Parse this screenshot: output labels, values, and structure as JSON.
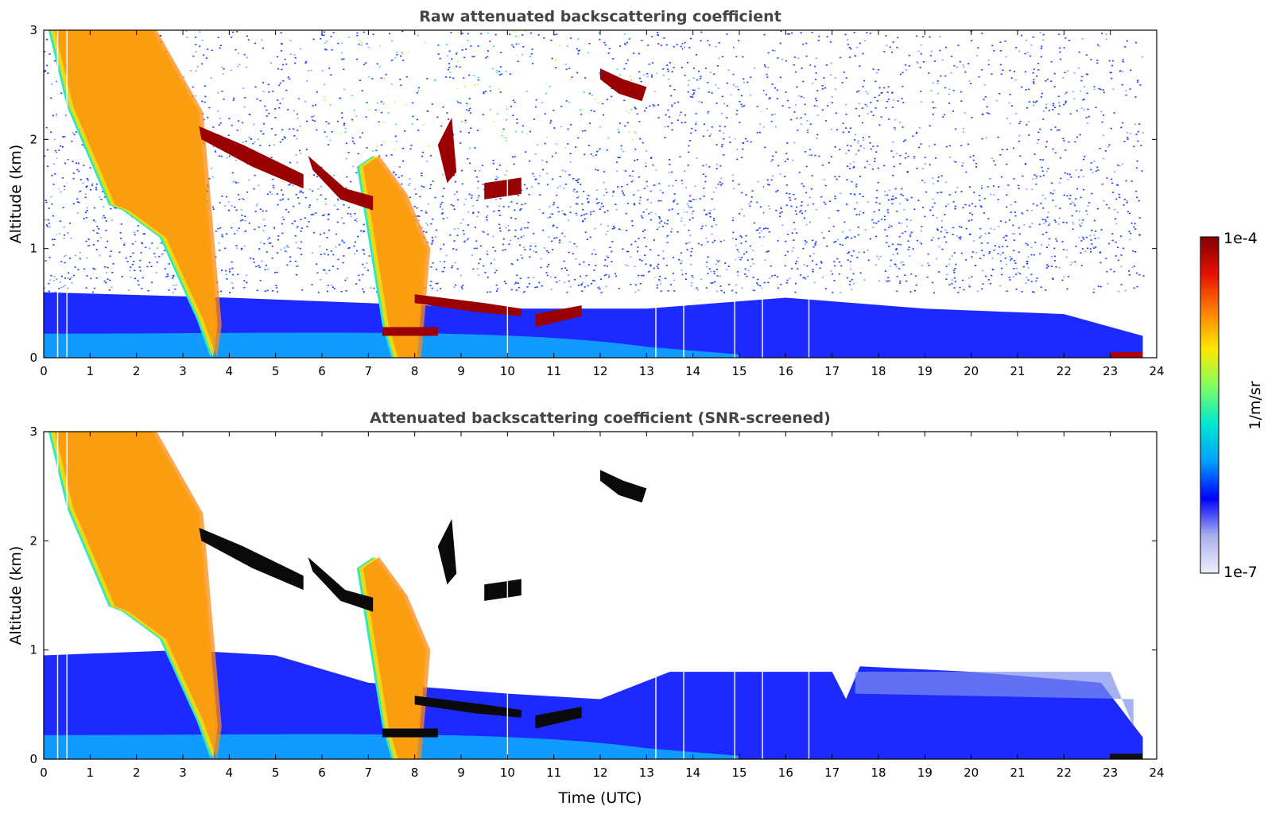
{
  "chart_data": [
    {
      "type": "heatmap",
      "title": "Raw attenuated backscattering coefficient",
      "xlabel": "",
      "ylabel": "Altitude (km)",
      "xlim": [
        0,
        24
      ],
      "ylim": [
        0,
        3
      ],
      "xticks": [
        0,
        1,
        2,
        3,
        4,
        5,
        6,
        7,
        8,
        9,
        10,
        11,
        12,
        13,
        14,
        15,
        16,
        17,
        18,
        19,
        20,
        21,
        22,
        23,
        24
      ],
      "yticks": [
        0,
        1,
        2,
        3
      ],
      "screened": false,
      "features": [
        {
          "name": "boundary-layer aerosol",
          "time_range": [
            0,
            23.7
          ],
          "altitude_top_km": [
            0.6,
            0.3
          ],
          "level": "low"
        },
        {
          "name": "precipitation fall streak",
          "time_range": [
            0.5,
            3.7
          ],
          "altitude_range_km": [
            0,
            3
          ],
          "level": "high"
        },
        {
          "name": "elevated cloud layer",
          "time_range": [
            3.3,
            5.6
          ],
          "altitude_km": [
            2.1,
            1.6
          ],
          "level": "saturated"
        },
        {
          "name": "elevated cloud layer",
          "time_range": [
            5.6,
            7.0
          ],
          "altitude_km": [
            1.8,
            1.5
          ],
          "level": "saturated"
        },
        {
          "name": "precipitation fall streak",
          "time_range": [
            6.8,
            8.3
          ],
          "altitude_range_km": [
            0,
            1.8
          ],
          "level": "high"
        },
        {
          "name": "low cloud layer",
          "time_range": [
            8.0,
            11.6
          ],
          "altitude_km": [
            0.55,
            0.35
          ],
          "level": "saturated"
        },
        {
          "name": "high cloud",
          "time_range": [
            12.0,
            13.0
          ],
          "altitude_km": [
            2.6,
            2.4
          ],
          "level": "saturated"
        }
      ]
    },
    {
      "type": "heatmap",
      "title": "Attenuated backscattering coefficient (SNR-screened)",
      "xlabel": "Time (UTC)",
      "ylabel": "Altitude (km)",
      "xlim": [
        0,
        24
      ],
      "ylim": [
        0,
        3
      ],
      "xticks": [
        0,
        1,
        2,
        3,
        4,
        5,
        6,
        7,
        8,
        9,
        10,
        11,
        12,
        13,
        14,
        15,
        16,
        17,
        18,
        19,
        20,
        21,
        22,
        23,
        24
      ],
      "yticks": [
        0,
        1,
        2,
        3
      ],
      "screened": true
    }
  ],
  "colorbar": {
    "label": "1/m/sr",
    "min_label": "1e-7",
    "max_label": "1e-4",
    "scale": "log",
    "colors": [
      "#eeeefa",
      "#aab0ee",
      "#0000ff",
      "#00a0ff",
      "#00e8d0",
      "#80ff60",
      "#ffe800",
      "#ff8000",
      "#e81000",
      "#800000"
    ]
  }
}
